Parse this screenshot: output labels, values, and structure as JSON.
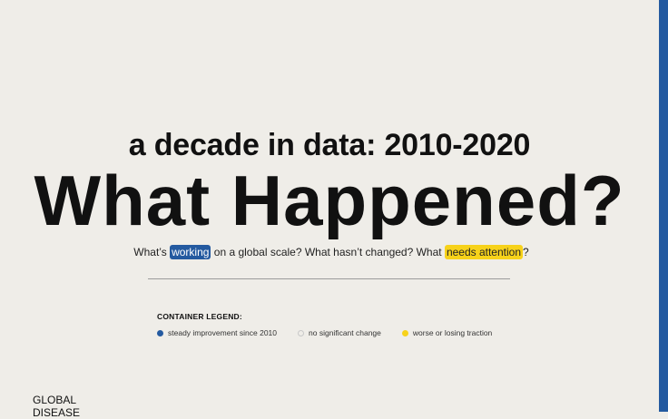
{
  "page": {
    "kicker": "a decade in data: 2010-2020",
    "title": "What Happened?",
    "subtitle": {
      "part1": "What’s ",
      "highlight_working": "working",
      "part2": " on a global scale? What hasn’t changed? What ",
      "highlight_attention": "needs attention",
      "part3": "?"
    }
  },
  "legend": {
    "title": "CONTAINER LEGEND:",
    "items": [
      {
        "label": "steady improvement since 2010",
        "icon": "blue-dot-icon"
      },
      {
        "label": "no significant change",
        "icon": "hollow-dot-icon"
      },
      {
        "label": "worse or losing traction",
        "icon": "yellow-dot-icon"
      }
    ]
  },
  "section": {
    "label_line1": "GLOBAL",
    "label_line2": "DISEASE"
  },
  "colors": {
    "accent_blue": "#245aa0",
    "accent_yellow": "#f7d21a",
    "background": "#efede8"
  }
}
